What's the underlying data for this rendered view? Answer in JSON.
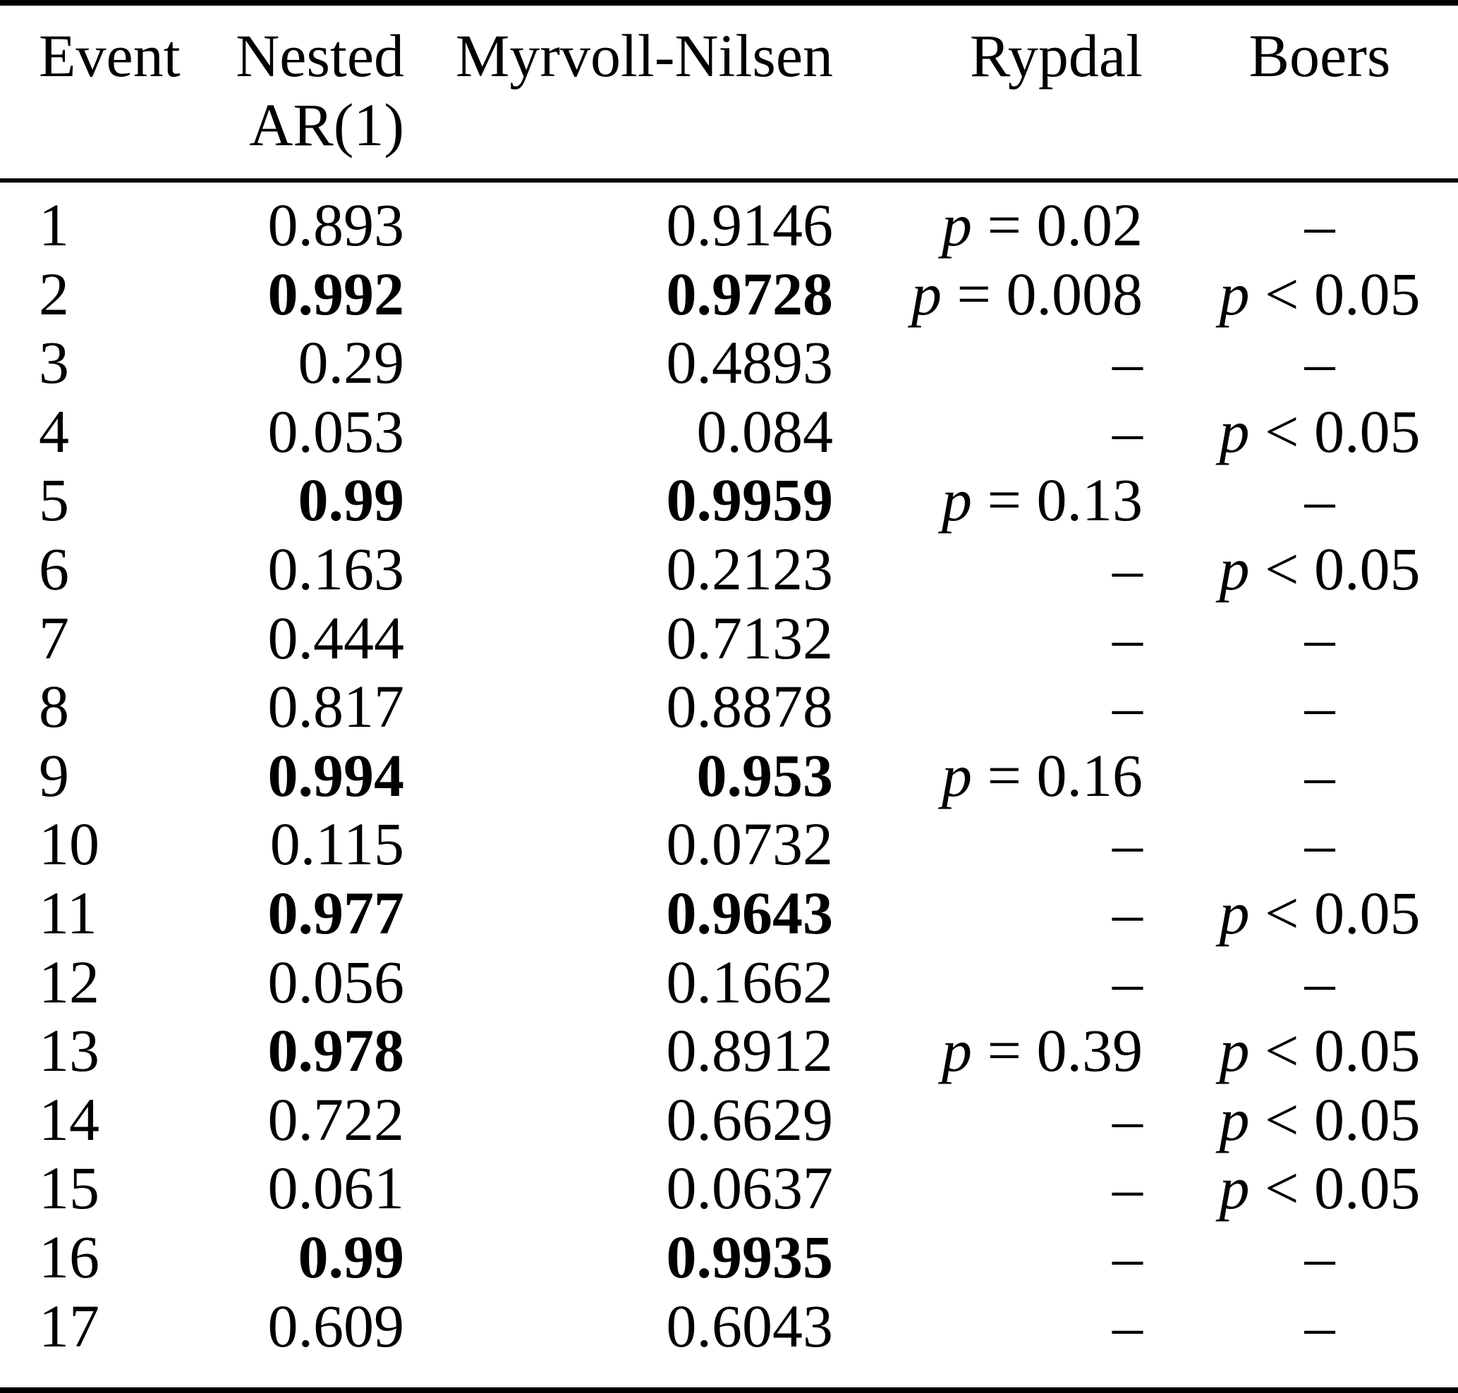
{
  "table": {
    "colors": {
      "text": "#000000",
      "background": "#ffffff",
      "rule": "#000000"
    },
    "headers": {
      "event": "Event",
      "nested_line1": "Nested",
      "nested_line2": "AR(1)",
      "myrvoll": "Myrvoll-Nilsen",
      "rypdal": "Rypdal",
      "boers": "Boers"
    },
    "rows": [
      {
        "event": "1",
        "nested": "0.893",
        "nested_bold": false,
        "myrvoll": "0.9146",
        "myrvoll_bold": false,
        "rypdal": "p = 0.02",
        "boers": "–"
      },
      {
        "event": "2",
        "nested": "0.992",
        "nested_bold": true,
        "myrvoll": "0.9728",
        "myrvoll_bold": true,
        "rypdal": "p = 0.008",
        "boers": "p < 0.05"
      },
      {
        "event": "3",
        "nested": "0.29",
        "nested_bold": false,
        "myrvoll": "0.4893",
        "myrvoll_bold": false,
        "rypdal": "–",
        "boers": "–"
      },
      {
        "event": "4",
        "nested": "0.053",
        "nested_bold": false,
        "myrvoll": "0.084",
        "myrvoll_bold": false,
        "rypdal": "–",
        "boers": "p < 0.05"
      },
      {
        "event": "5",
        "nested": "0.99",
        "nested_bold": true,
        "myrvoll": "0.9959",
        "myrvoll_bold": true,
        "rypdal": "p = 0.13",
        "boers": "–"
      },
      {
        "event": "6",
        "nested": "0.163",
        "nested_bold": false,
        "myrvoll": "0.2123",
        "myrvoll_bold": false,
        "rypdal": "–",
        "boers": "p < 0.05"
      },
      {
        "event": "7",
        "nested": "0.444",
        "nested_bold": false,
        "myrvoll": "0.7132",
        "myrvoll_bold": false,
        "rypdal": "–",
        "boers": "–"
      },
      {
        "event": "8",
        "nested": "0.817",
        "nested_bold": false,
        "myrvoll": "0.8878",
        "myrvoll_bold": false,
        "rypdal": "–",
        "boers": "–"
      },
      {
        "event": "9",
        "nested": "0.994",
        "nested_bold": true,
        "myrvoll": "0.953",
        "myrvoll_bold": true,
        "rypdal": "p = 0.16",
        "boers": "–"
      },
      {
        "event": "10",
        "nested": "0.115",
        "nested_bold": false,
        "myrvoll": "0.0732",
        "myrvoll_bold": false,
        "rypdal": "–",
        "boers": "–"
      },
      {
        "event": "11",
        "nested": "0.977",
        "nested_bold": true,
        "myrvoll": "0.9643",
        "myrvoll_bold": true,
        "rypdal": "–",
        "boers": "p < 0.05"
      },
      {
        "event": "12",
        "nested": "0.056",
        "nested_bold": false,
        "myrvoll": "0.1662",
        "myrvoll_bold": false,
        "rypdal": "–",
        "boers": "–"
      },
      {
        "event": "13",
        "nested": "0.978",
        "nested_bold": true,
        "myrvoll": "0.8912",
        "myrvoll_bold": false,
        "rypdal": "p = 0.39",
        "boers": "p < 0.05"
      },
      {
        "event": "14",
        "nested": "0.722",
        "nested_bold": false,
        "myrvoll": "0.6629",
        "myrvoll_bold": false,
        "rypdal": "–",
        "boers": "p < 0.05"
      },
      {
        "event": "15",
        "nested": "0.061",
        "nested_bold": false,
        "myrvoll": "0.0637",
        "myrvoll_bold": false,
        "rypdal": "–",
        "boers": "p < 0.05"
      },
      {
        "event": "16",
        "nested": "0.99",
        "nested_bold": true,
        "myrvoll": "0.9935",
        "myrvoll_bold": true,
        "rypdal": "–",
        "boers": "–"
      },
      {
        "event": "17",
        "nested": "0.609",
        "nested_bold": false,
        "myrvoll": "0.6043",
        "myrvoll_bold": false,
        "rypdal": "–",
        "boers": "–"
      }
    ]
  }
}
